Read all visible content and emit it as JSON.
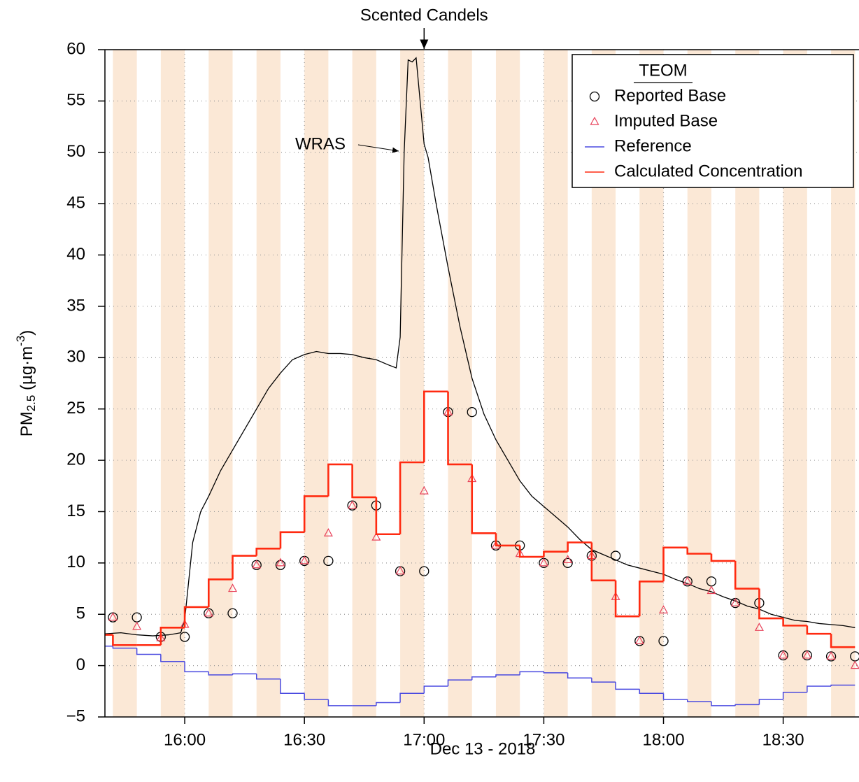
{
  "chart_data": {
    "type": "line",
    "xlabel": "Dec 13 - 2018",
    "ylabel": {
      "main": "PM",
      "sub": "2.5",
      "mid": " (µg·m",
      "sup": "-3",
      "end": ")"
    },
    "xlim": [
      "15:40",
      "18:49"
    ],
    "xticks": [
      "16:00",
      "16:30",
      "17:00",
      "17:30",
      "18:00",
      "18:30"
    ],
    "ylim": [
      -5,
      60
    ],
    "yticks": [
      {
        "value": -5,
        "label": "−5"
      },
      0,
      5,
      10,
      15,
      20,
      25,
      30,
      35,
      40,
      45,
      50,
      55,
      60
    ],
    "grid": true,
    "legend": {
      "title": "TEOM",
      "position": "upper right"
    },
    "annotations": [
      {
        "text": "Scented Candels",
        "x": "17:00"
      }
    ],
    "series": [
      {
        "name": "Reported Base",
        "type": "scatter",
        "marker": "circle",
        "color": "#000000",
        "x": [
          "15:42",
          "15:48",
          "15:54",
          "16:00",
          "16:06",
          "16:12",
          "16:18",
          "16:24",
          "16:30",
          "16:36",
          "16:42",
          "16:48",
          "16:54",
          "17:00",
          "17:06",
          "17:12",
          "17:18",
          "17:24",
          "17:30",
          "17:36",
          "17:42",
          "17:48",
          "17:54",
          "18:00",
          "18:06",
          "18:12",
          "18:18",
          "18:24",
          "18:30",
          "18:36",
          "18:42",
          "18:48"
        ],
        "values": [
          4.7,
          4.7,
          2.8,
          2.8,
          5.1,
          5.1,
          9.8,
          9.8,
          10.2,
          10.2,
          15.6,
          15.6,
          9.2,
          9.2,
          24.7,
          24.7,
          11.7,
          11.7,
          10.0,
          10.0,
          10.7,
          10.7,
          2.4,
          2.4,
          8.2,
          8.2,
          6.1,
          6.1,
          1.0,
          1.0,
          0.9,
          0.9
        ]
      },
      {
        "name": "Imputed Base",
        "type": "scatter",
        "marker": "triangle",
        "color": "#e8425a",
        "x": [
          "15:42",
          "15:48",
          "15:54",
          "16:00",
          "16:06",
          "16:12",
          "16:18",
          "16:24",
          "16:30",
          "16:36",
          "16:42",
          "16:48",
          "16:54",
          "17:00",
          "17:06",
          "17:12",
          "17:18",
          "17:24",
          "17:30",
          "17:36",
          "17:42",
          "17:48",
          "17:54",
          "18:00",
          "18:06",
          "18:12",
          "18:18",
          "18:24",
          "18:30",
          "18:36",
          "18:42",
          "18:48"
        ],
        "values": [
          4.7,
          3.8,
          2.7,
          4.0,
          5.1,
          7.5,
          9.8,
          10.0,
          10.2,
          12.9,
          15.6,
          12.5,
          9.2,
          17.0,
          24.7,
          18.2,
          11.7,
          10.9,
          10.0,
          10.3,
          10.7,
          6.7,
          2.4,
          5.4,
          8.2,
          7.3,
          6.1,
          3.7,
          1.0,
          1.0,
          0.9,
          0.0
        ]
      },
      {
        "name": "Reference",
        "type": "step",
        "color": "#4a4ae0",
        "x": [
          "15:42",
          "15:48",
          "15:54",
          "16:00",
          "16:06",
          "16:12",
          "16:18",
          "16:24",
          "16:30",
          "16:36",
          "16:42",
          "16:48",
          "16:54",
          "17:00",
          "17:06",
          "17:12",
          "17:18",
          "17:24",
          "17:30",
          "17:36",
          "17:42",
          "17:48",
          "17:54",
          "18:00",
          "18:06",
          "18:12",
          "18:18",
          "18:24",
          "18:30",
          "18:36",
          "18:42",
          "18:48"
        ],
        "values": [
          1.9,
          1.7,
          1.1,
          0.4,
          -0.6,
          -0.9,
          -0.8,
          -1.3,
          -2.7,
          -3.3,
          -3.9,
          -3.9,
          -3.6,
          -2.7,
          -2.0,
          -1.4,
          -1.1,
          -0.9,
          -0.6,
          -0.7,
          -1.2,
          -1.6,
          -2.3,
          -2.7,
          -3.3,
          -3.5,
          -3.9,
          -3.8,
          -3.3,
          -2.6,
          -2.0,
          -1.9
        ]
      },
      {
        "name": "Calculated Concentration",
        "type": "step",
        "color": "#ff2a10",
        "x": [
          "15:42",
          "15:48",
          "15:54",
          "16:00",
          "16:06",
          "16:12",
          "16:18",
          "16:24",
          "16:30",
          "16:36",
          "16:42",
          "16:48",
          "16:54",
          "17:00",
          "17:06",
          "17:12",
          "17:18",
          "17:24",
          "17:30",
          "17:36",
          "17:42",
          "17:48",
          "17:54",
          "18:00",
          "18:06",
          "18:12",
          "18:18",
          "18:24",
          "18:30",
          "18:36",
          "18:42",
          "18:48"
        ],
        "values": [
          3.0,
          2.0,
          2.0,
          3.7,
          5.7,
          8.4,
          10.7,
          11.4,
          13.0,
          16.5,
          19.6,
          16.4,
          12.8,
          19.8,
          26.7,
          19.6,
          12.9,
          11.7,
          10.6,
          11.1,
          12.0,
          8.3,
          4.8,
          8.2,
          11.5,
          10.9,
          10.2,
          7.5,
          4.6,
          3.9,
          3.1,
          1.8
        ]
      }
    ],
    "wras": {
      "name": "WRAS",
      "color": "#000000",
      "x": [
        "15:40",
        "15:44",
        "15:48",
        "15:52",
        "15:56",
        "15:59",
        "16:00",
        "16:02",
        "16:04",
        "16:06",
        "16:09",
        "16:12",
        "16:15",
        "16:18",
        "16:21",
        "16:24",
        "16:27",
        "16:30",
        "16:33",
        "16:36",
        "16:39",
        "16:42",
        "16:45",
        "16:48",
        "16:51",
        "16:53",
        "16:54",
        "16:55",
        "16:56",
        "16:57",
        "16:58",
        "16:59",
        "17:00",
        "17:01",
        "17:03",
        "17:06",
        "17:09",
        "17:12",
        "17:15",
        "17:18",
        "17:21",
        "17:24",
        "17:27",
        "17:30",
        "17:33",
        "17:36",
        "17:39",
        "17:42",
        "17:45",
        "17:48",
        "17:51",
        "17:54",
        "17:57",
        "18:00",
        "18:03",
        "18:06",
        "18:09",
        "18:12",
        "18:15",
        "18:18",
        "18:21",
        "18:24",
        "18:27",
        "18:30",
        "18:33",
        "18:36",
        "18:39",
        "18:42",
        "18:45",
        "18:48"
      ],
      "values": [
        3.1,
        3.2,
        3.0,
        2.9,
        3.0,
        3.2,
        4.5,
        12,
        15,
        16.5,
        19,
        21,
        23,
        25,
        27,
        28.5,
        29.8,
        30.3,
        30.6,
        30.4,
        30.4,
        30.3,
        30,
        29.8,
        29.3,
        29.0,
        32,
        50,
        59,
        58.8,
        59.2,
        55,
        50.8,
        49.5,
        45,
        38.8,
        33,
        28,
        24.5,
        22,
        20,
        18,
        16.5,
        15.5,
        14.5,
        13.5,
        12.3,
        11.3,
        10.8,
        10.3,
        9.8,
        9.5,
        9.2,
        8.9,
        8.4,
        8.0,
        7.5,
        7.2,
        6.7,
        6.3,
        5.8,
        5.5,
        5.0,
        4.7,
        4.4,
        4.3,
        4.1,
        4.0,
        3.9,
        3.7
      ]
    }
  }
}
